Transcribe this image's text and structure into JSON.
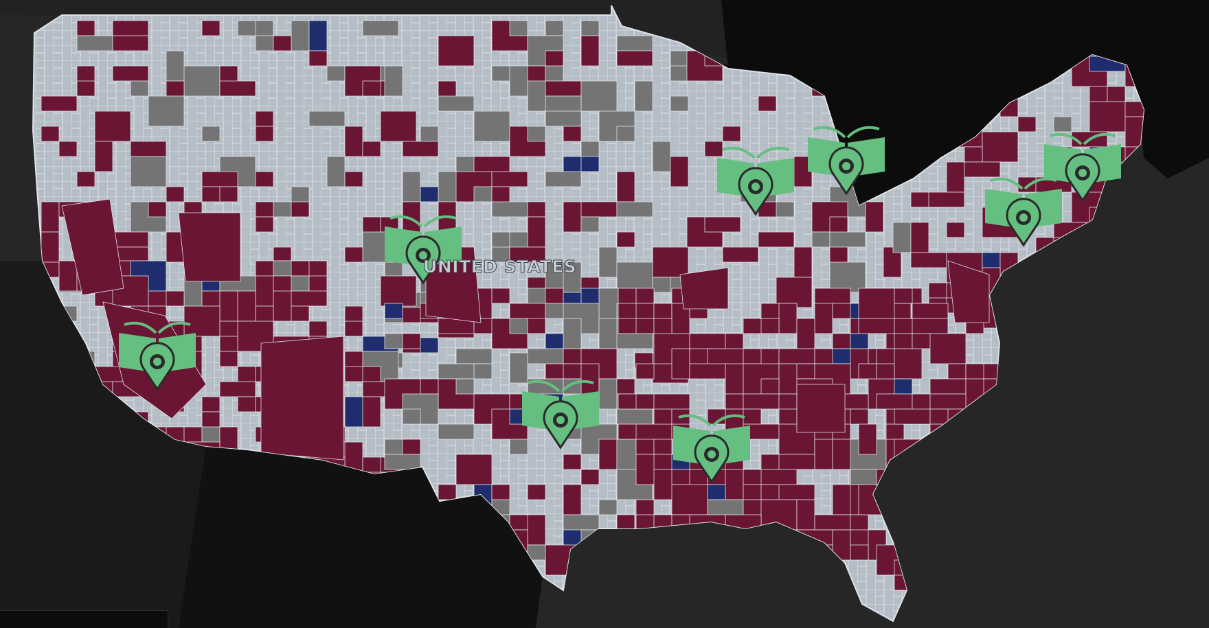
{
  "map": {
    "country_label": "UNITED STATES",
    "legend_colors": {
      "background": "#262626",
      "water": "#0c0c0c",
      "county_base": "#b5bec6",
      "county_border": "#dfe3e7",
      "category_maroon": "#6a1533",
      "category_gray": "#747474",
      "category_navy": "#1f2d6e",
      "marker_green": "#64bf80"
    },
    "markers": [
      {
        "name": "library-marker-los-angeles",
        "icon": "open-book-map-pin-icon"
      },
      {
        "name": "library-marker-utah",
        "icon": "open-book-map-pin-icon"
      },
      {
        "name": "library-marker-central-texas",
        "icon": "open-book-map-pin-icon"
      },
      {
        "name": "library-marker-louisiana",
        "icon": "open-book-map-pin-icon"
      },
      {
        "name": "library-marker-illinois",
        "icon": "open-book-map-pin-icon"
      },
      {
        "name": "library-marker-michigan",
        "icon": "open-book-map-pin-icon"
      },
      {
        "name": "library-marker-new-york",
        "icon": "open-book-map-pin-icon"
      },
      {
        "name": "library-marker-massachusetts",
        "icon": "open-book-map-pin-icon"
      }
    ]
  }
}
